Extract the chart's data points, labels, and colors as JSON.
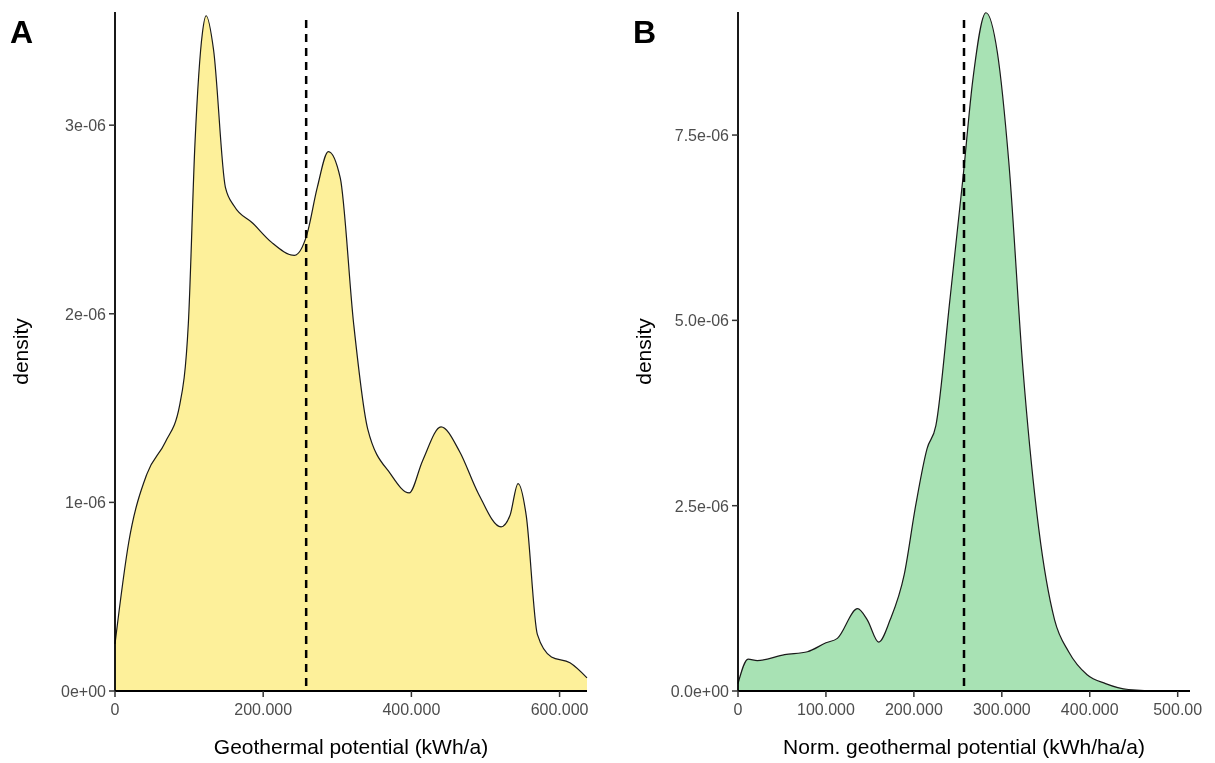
{
  "chart_data": [
    {
      "type": "area",
      "title": "A",
      "xlabel": "Geothermal potential (kWh/a)",
      "ylabel": "density",
      "series": [
        {
          "color": "#fdf09a",
          "x": [
            0,
            18.6,
            43,
            68,
            87,
            99,
            108,
            118,
            123,
            133,
            149,
            161,
            186,
            211,
            242,
            259,
            273,
            288,
            304,
            322,
            341,
            372,
            397,
            415,
            440,
            465,
            490,
            521,
            533,
            544,
            555,
            570,
            589,
            614,
            637
          ],
          "values": [
            2.5e-07,
            7.9e-07,
            1.15e-06,
            1.32e-06,
            1.51e-06,
            1.95e-06,
            2.91e-06,
            3.49e-06,
            3.58e-06,
            3.4e-06,
            2.67e-06,
            2.57e-06,
            2.48e-06,
            2.38e-06,
            2.31e-06,
            2.42e-06,
            2.67e-06,
            2.86e-06,
            2.72e-06,
            1.95e-06,
            1.39e-06,
            1.15e-06,
            1.05e-06,
            1.22e-06,
            1.4e-06,
            1.27e-06,
            1.05e-06,
            8.7e-07,
            9.3e-07,
            1.1e-06,
            9.3e-07,
            3e-07,
            1.8e-07,
            1.5e-07,
            7e-08
          ]
        }
      ],
      "xlim": [
        0,
        637
      ],
      "ylim": [
        0,
        3.6e-06
      ],
      "xticks": [
        {
          "value": 0,
          "label": "0"
        },
        {
          "value": 200,
          "label": "200.000"
        },
        {
          "value": 400,
          "label": "400.000"
        },
        {
          "value": 600,
          "label": "600.000"
        }
      ],
      "yticks": [
        {
          "value": 0,
          "label": "0e+00"
        },
        {
          "value": 1e-06,
          "label": "1e-06"
        },
        {
          "value": 2e-06,
          "label": "2e-06"
        },
        {
          "value": 3e-06,
          "label": "3e-06"
        }
      ],
      "ref_lines": [
        {
          "axis": "x",
          "value": 258,
          "color": "#000000",
          "line_style": "dashed"
        }
      ],
      "grid": false
    },
    {
      "type": "area",
      "title": "B",
      "xlabel": "Norm. geothermal potential (kWh/ha/a)",
      "ylabel": "density",
      "series": [
        {
          "color": "#a8e2b4",
          "x": [
            0,
            11.5,
            21.9,
            53,
            79,
            100,
            113,
            136,
            147,
            160,
            173,
            189,
            202,
            215,
            225,
            241,
            256,
            267,
            282,
            295,
            308,
            324,
            342,
            360,
            376,
            397,
            418,
            444,
            480,
            514
          ],
          "values": [
            1e-07,
            4.3e-07,
            4.1e-07,
            4.9e-07,
            5.3e-07,
            6.5e-07,
            7.1e-07,
            1.11e-06,
            9.6e-07,
            6.6e-07,
            9.6e-07,
            1.57e-06,
            2.5e-06,
            3.27e-06,
            3.58e-06,
            5.28e-06,
            6.94e-06,
            8.24e-06,
            9.15e-06,
            8.61e-06,
            7.13e-06,
            4.35e-06,
            2.19e-06,
            9.6e-07,
            5.3e-07,
            2.2e-07,
            1e-07,
            2e-08,
            0,
            0
          ]
        }
      ],
      "xlim": [
        0,
        514
      ],
      "ylim": [
        0,
        9.16e-06
      ],
      "xticks": [
        {
          "value": 0,
          "label": "0"
        },
        {
          "value": 100,
          "label": "100.000"
        },
        {
          "value": 200,
          "label": "200.000"
        },
        {
          "value": 300,
          "label": "300.000"
        },
        {
          "value": 400,
          "label": "400.000"
        },
        {
          "value": 500,
          "label": "500.00"
        }
      ],
      "yticks": [
        {
          "value": 0,
          "label": "0.0e+00"
        },
        {
          "value": 2.5e-06,
          "label": "2.5e-06"
        },
        {
          "value": 5e-06,
          "label": "5.0e-06"
        },
        {
          "value": 7.5e-06,
          "label": "7.5e-06"
        }
      ],
      "ref_lines": [
        {
          "axis": "x",
          "value": 257,
          "color": "#000000",
          "line_style": "dashed"
        }
      ],
      "grid": false
    }
  ]
}
